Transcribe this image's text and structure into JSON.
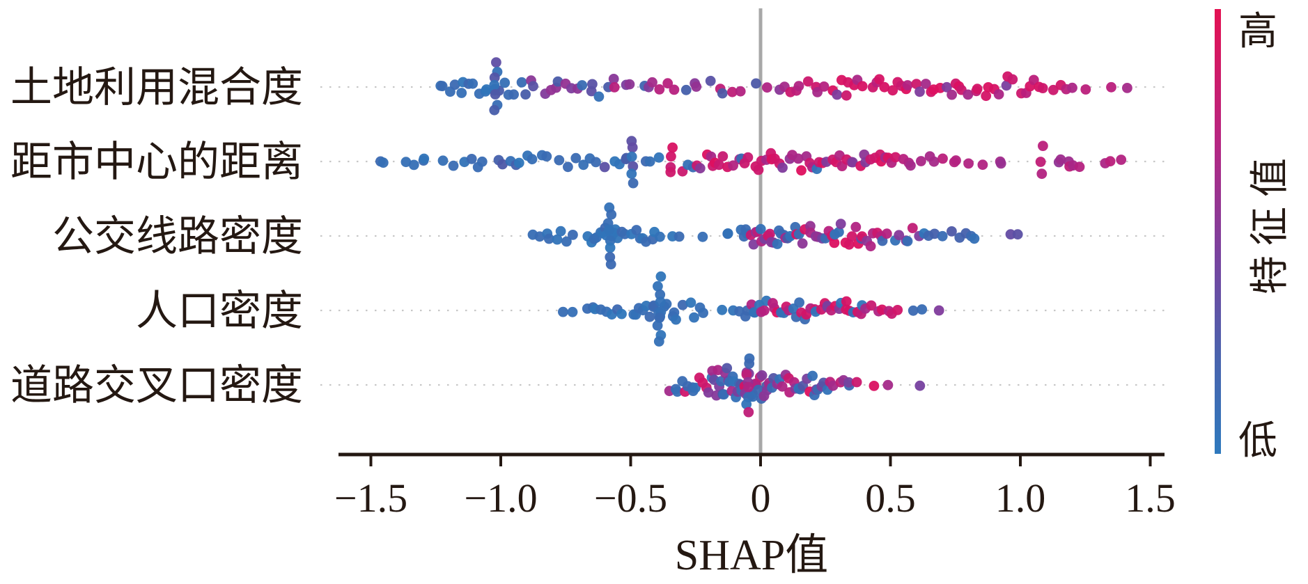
{
  "figure": {
    "kind": "SHAP summary beeswarm plot",
    "background": "#ffffff"
  },
  "colors": {
    "axis_text": "#241812",
    "grid": "#c7c7c7",
    "zero_line": "#a8a8a8",
    "palette": [
      "#2e76ba",
      "#4a5aa8",
      "#7e3c9d",
      "#b02383",
      "#de0f5e"
    ],
    "low_color": "#2e76ba",
    "high_color": "#de0f5e"
  },
  "colorbar": {
    "high_label": "高",
    "low_label": "低",
    "title": "特征值",
    "stops": [
      {
        "at": 0.0,
        "color": "#e31152"
      },
      {
        "at": 0.3,
        "color": "#b62682"
      },
      {
        "at": 0.55,
        "color": "#7a429e"
      },
      {
        "at": 0.78,
        "color": "#4a63ad"
      },
      {
        "at": 1.0,
        "color": "#2e79bd"
      }
    ]
  },
  "chart_data": {
    "type": "scatter",
    "subtype": "beeswarm",
    "xlabel": "SHAP值",
    "x_range": [
      -1.5,
      1.5
    ],
    "x_ticks": [
      {
        "value": -1.5,
        "label": "−1.5"
      },
      {
        "value": -1.0,
        "label": "−1.0"
      },
      {
        "value": -0.5,
        "label": "−0.5"
      },
      {
        "value": 0.0,
        "label": "0"
      },
      {
        "value": 0.5,
        "label": "0.5"
      },
      {
        "value": 1.0,
        "label": "1.0"
      },
      {
        "value": 1.5,
        "label": "1.5"
      }
    ],
    "grid": "dotted-horizontal-per-feature",
    "zero_reference_line": 0,
    "legend_position": "right-colorbar",
    "rows": [
      {
        "feature": "土地利用混合度",
        "shap_range": [
          -1.26,
          1.42
        ],
        "clusters": [
          {
            "v": [
              -1.26,
              -1.18
            ],
            "n": 3,
            "c": "blue",
            "j": 8
          },
          {
            "v": [
              -1.18,
              -0.92
            ],
            "n": 15,
            "c": "blue:4,blue-indigo:1",
            "j": 15
          },
          {
            "v": [
              -1.02
            ],
            "n": 7,
            "c": "blue:3,indigo:1",
            "s": 36
          },
          {
            "v": [
              -0.92,
              -0.56
            ],
            "n": 16,
            "c": "indigo:2,purple:2,blue:1",
            "j": 15
          },
          {
            "v": [
              -0.56,
              -0.22
            ],
            "n": 12,
            "c": "purple:2,magenta:2,blue-indigo:1",
            "j": 13
          },
          {
            "v": [
              -0.22,
              0.07
            ],
            "n": 8,
            "c": "magenta:2,purple:1,indigo:1",
            "j": 11
          },
          {
            "v": [
              0.07,
              0.22
            ],
            "n": 6,
            "c": "red:1,magenta:1",
            "j": 11
          },
          {
            "v": [
              0.22,
              1.1
            ],
            "n": 46,
            "c": "red:6,magenta:2,purple:1",
            "j": 17
          },
          {
            "v": [
              1.1,
              1.25
            ],
            "n": 5,
            "c": "magenta:1,red:1",
            "j": 9
          },
          {
            "v": [
              1.33,
              1.42
            ],
            "n": 2,
            "c": "magenta",
            "j": 4
          }
        ]
      },
      {
        "feature": "距市中心的距离",
        "shap_range": [
          -1.49,
          1.39
        ],
        "clusters": [
          {
            "v": [
              -1.49,
              -1.43
            ],
            "n": 2,
            "c": "blue",
            "j": 5
          },
          {
            "v": [
              -1.37,
              -1.27
            ],
            "n": 4,
            "c": "blue",
            "j": 7
          },
          {
            "v": [
              -1.22,
              -1.05
            ],
            "n": 6,
            "c": "blue",
            "j": 10
          },
          {
            "v": [
              -1.02,
              -0.82
            ],
            "n": 9,
            "c": "blue:3,blue-indigo:1",
            "j": 13
          },
          {
            "v": [
              -0.78,
              -0.62
            ],
            "n": 6,
            "c": "blue",
            "j": 10
          },
          {
            "v": [
              -0.6,
              -0.5
            ],
            "n": 5,
            "c": "blue:2,indigo:1",
            "j": 10
          },
          {
            "v": [
              -0.49
            ],
            "n": 6,
            "c": "blue:2,indigo:1",
            "s": 30
          },
          {
            "v": [
              -0.45,
              -0.38
            ],
            "n": 3,
            "c": "blue",
            "j": 8
          },
          {
            "v": [
              -0.345
            ],
            "n": 4,
            "c": "red",
            "s": 18
          },
          {
            "v": [
              -0.3,
              -0.02
            ],
            "n": 18,
            "c": "red:5,magenta:2,blue:1,purple:1",
            "j": 17
          },
          {
            "v": [
              -0.02,
              0.55
            ],
            "n": 38,
            "c": "red:5,magenta:4,purple:2,blue:1",
            "j": 18
          },
          {
            "v": [
              0.55,
              0.72
            ],
            "n": 6,
            "c": "magenta",
            "j": 10
          },
          {
            "v": [
              0.73,
              0.8
            ],
            "n": 3,
            "c": "magenta",
            "j": 6
          },
          {
            "v": [
              0.85,
              0.96
            ],
            "n": 3,
            "c": "magenta:1,purple-magenta:1",
            "j": 5
          },
          {
            "v": [
              1.08
            ],
            "n": 3,
            "c": "magenta",
            "s": 20
          },
          {
            "v": [
              1.13,
              1.24
            ],
            "n": 6,
            "c": "magenta:2,purple-magenta:1",
            "j": 14
          },
          {
            "v": [
              1.29,
              1.39
            ],
            "n": 3,
            "c": "magenta",
            "j": 5
          }
        ]
      },
      {
        "feature": "公交线路密度",
        "shap_range": [
          -0.88,
          0.99
        ],
        "clusters": [
          {
            "v": [
              -0.88,
              -0.72
            ],
            "n": 8,
            "c": "blue",
            "j": 10
          },
          {
            "v": [
              -0.67,
              -0.52
            ],
            "n": 14,
            "c": "blue",
            "j": 14
          },
          {
            "v": [
              -0.58
            ],
            "n": 8,
            "c": "blue",
            "s": 42
          },
          {
            "v": [
              -0.5,
              -0.38
            ],
            "n": 8,
            "c": "blue",
            "j": 12
          },
          {
            "v": [
              -0.34,
              -0.3
            ],
            "n": 2,
            "c": "blue",
            "j": 5
          },
          {
            "v": [
              -0.23,
              -0.22
            ],
            "n": 1,
            "c": "blue",
            "j": 2
          },
          {
            "v": [
              -0.13,
              -0.12
            ],
            "n": 2,
            "c": "blue",
            "j": 5
          },
          {
            "v": [
              -0.08,
              0.1
            ],
            "n": 20,
            "c": "blue:3,red:2,magenta:2,purple:2,indigo:1",
            "j": 18
          },
          {
            "v": [
              0.1,
              0.45
            ],
            "n": 30,
            "c": "blue:3,red:2,magenta:2,purple:2,indigo:1",
            "j": 18
          },
          {
            "v": [
              0.45,
              0.64
            ],
            "n": 10,
            "c": "blue:2,purple:1,magenta:1",
            "j": 14
          },
          {
            "v": [
              0.64,
              0.79
            ],
            "n": 6,
            "c": "indigo-blue",
            "j": 10
          },
          {
            "v": [
              0.79,
              0.84
            ],
            "n": 2,
            "c": "blue",
            "j": 5
          },
          {
            "v": [
              0.95,
              0.99
            ],
            "n": 2,
            "c": "indigo:1,purple:1",
            "j": 4
          }
        ]
      },
      {
        "feature": "人口密度",
        "shap_range": [
          -0.77,
          0.69
        ],
        "clusters": [
          {
            "v": [
              -0.77,
              -0.72
            ],
            "n": 2,
            "c": "blue",
            "j": 4
          },
          {
            "v": [
              -0.68,
              -0.52
            ],
            "n": 8,
            "c": "blue",
            "j": 11
          },
          {
            "v": [
              -0.5,
              -0.3
            ],
            "n": 16,
            "c": "blue",
            "j": 16
          },
          {
            "v": [
              -0.39
            ],
            "n": 9,
            "c": "blue",
            "s": 46
          },
          {
            "v": [
              -0.27,
              -0.21
            ],
            "n": 4,
            "c": "blue",
            "j": 12
          },
          {
            "v": [
              -0.15,
              -0.08
            ],
            "n": 3,
            "c": "blue",
            "j": 8
          },
          {
            "v": [
              -0.07,
              0.0
            ],
            "n": 6,
            "c": "red:1,blue:1,magenta:1",
            "j": 14
          },
          {
            "v": [
              0.0,
              0.4
            ],
            "n": 34,
            "c": "red:3,blue:3,magenta:2,purple:1",
            "j": 17
          },
          {
            "v": [
              0.4,
              0.52
            ],
            "n": 6,
            "c": "blue:1,magenta:1,red:1",
            "j": 12
          },
          {
            "v": [
              0.52,
              0.53
            ],
            "n": 1,
            "c": "red",
            "j": 2
          },
          {
            "v": [
              0.58,
              0.64
            ],
            "n": 2,
            "c": "blue",
            "j": 5
          },
          {
            "v": [
              0.68,
              0.69
            ],
            "n": 1,
            "c": "purple",
            "j": 2
          }
        ]
      },
      {
        "feature": "道路交叉口密度",
        "shap_range": [
          -0.35,
          0.62
        ],
        "clusters": [
          {
            "v": [
              -0.35,
              -0.2
            ],
            "n": 12,
            "c": "blue:3,red:1,magenta:1,purple:1",
            "j": 20
          },
          {
            "v": [
              -0.2,
              0.03
            ],
            "n": 38,
            "c": "blue:3,purple:2,magenta:2,red:2,indigo:1",
            "j": 26
          },
          {
            "v": [
              -0.05
            ],
            "n": 8,
            "c": "blue:2,purple:1,magenta:1",
            "s": 40
          },
          {
            "v": [
              0.03,
              0.25
            ],
            "n": 22,
            "c": "blue:2,purple:2,magenta:2,red:1,indigo:1",
            "j": 20
          },
          {
            "v": [
              0.25,
              0.37
            ],
            "n": 8,
            "c": "magenta:2,red:1,blue:1,purple:1",
            "j": 14
          },
          {
            "v": [
              0.43,
              0.44
            ],
            "n": 1,
            "c": "red",
            "j": 2
          },
          {
            "v": [
              0.48,
              0.49
            ],
            "n": 1,
            "c": "purple-magenta",
            "j": 2
          },
          {
            "v": [
              0.61,
              0.62
            ],
            "n": 1,
            "c": "purple",
            "j": 2
          }
        ]
      }
    ]
  }
}
